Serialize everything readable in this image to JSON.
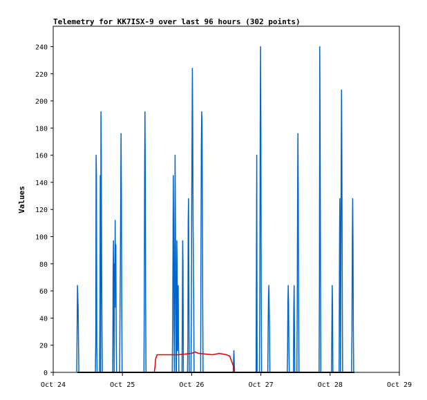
{
  "chart_data": {
    "type": "line",
    "title": "Telemetry for KK7ISX-9 over last 96 hours (302 points)",
    "ylabel": "Values",
    "xlabel": "",
    "ylim": [
      0,
      255
    ],
    "xlim": [
      0,
      5
    ],
    "grid": false,
    "x_tick_labels": [
      "Oct 24",
      "Oct 25",
      "Oct 26",
      "Oct 27",
      "Oct 28",
      "Oct 29"
    ],
    "y_ticks": [
      0,
      20,
      40,
      60,
      80,
      100,
      120,
      140,
      160,
      180,
      200,
      220,
      240
    ],
    "colors": {
      "blue_series": "#0066cc",
      "red_series": "#dd0000",
      "black_series": "#000000"
    },
    "series": [
      {
        "color": "#0066cc",
        "points": [
          [
            0.34,
            0
          ],
          [
            0.35,
            64
          ],
          [
            0.36,
            48
          ],
          [
            0.37,
            0
          ],
          [
            0.61,
            0
          ],
          [
            0.615,
            25
          ],
          [
            0.62,
            160
          ],
          [
            0.625,
            145
          ],
          [
            0.63,
            18
          ],
          [
            0.635,
            0
          ],
          [
            0.67,
            0
          ],
          [
            0.675,
            50
          ],
          [
            0.68,
            145
          ],
          [
            0.685,
            0
          ],
          [
            0.69,
            192
          ],
          [
            0.695,
            160
          ],
          [
            0.7,
            80
          ],
          [
            0.705,
            32
          ],
          [
            0.71,
            0
          ],
          [
            0.86,
            0
          ],
          [
            0.865,
            72
          ],
          [
            0.87,
            97
          ],
          [
            0.875,
            64
          ],
          [
            0.88,
            0
          ],
          [
            0.885,
            80
          ],
          [
            0.89,
            65
          ],
          [
            0.895,
            112
          ],
          [
            0.9,
            48
          ],
          [
            0.905,
            94
          ],
          [
            0.91,
            24
          ],
          [
            0.915,
            0
          ],
          [
            0.96,
            0
          ],
          [
            0.965,
            48
          ],
          [
            0.97,
            80
          ],
          [
            0.975,
            130
          ],
          [
            0.98,
            176
          ],
          [
            0.985,
            132
          ],
          [
            0.99,
            48
          ],
          [
            0.995,
            0
          ],
          [
            1.31,
            0
          ],
          [
            1.315,
            48
          ],
          [
            1.32,
            145
          ],
          [
            1.325,
            192
          ],
          [
            1.33,
            145
          ],
          [
            1.335,
            48
          ],
          [
            1.34,
            0
          ],
          [
            1.72,
            0
          ],
          [
            1.725,
            32
          ],
          [
            1.73,
            80
          ],
          [
            1.735,
            145
          ],
          [
            1.74,
            108
          ],
          [
            1.745,
            32
          ],
          [
            1.75,
            0
          ],
          [
            1.755,
            65
          ],
          [
            1.76,
            160
          ],
          [
            1.765,
            112
          ],
          [
            1.77,
            48
          ],
          [
            1.775,
            0
          ],
          [
            1.78,
            0
          ],
          [
            1.785,
            97
          ],
          [
            1.79,
            80
          ],
          [
            1.795,
            16
          ],
          [
            1.8,
            48
          ],
          [
            1.805,
            64
          ],
          [
            1.81,
            24
          ],
          [
            1.815,
            0
          ],
          [
            1.86,
            0
          ],
          [
            1.865,
            48
          ],
          [
            1.87,
            97
          ],
          [
            1.875,
            80
          ],
          [
            1.88,
            0
          ],
          [
            1.94,
            0
          ],
          [
            1.945,
            24
          ],
          [
            1.95,
            112
          ],
          [
            1.955,
            128
          ],
          [
            1.96,
            64
          ],
          [
            1.965,
            0
          ],
          [
            1.99,
            0
          ],
          [
            1.995,
            32
          ],
          [
            2.0,
            120
          ],
          [
            2.005,
            168
          ],
          [
            2.01,
            224
          ],
          [
            2.015,
            186
          ],
          [
            2.02,
            112
          ],
          [
            2.025,
            80
          ],
          [
            2.03,
            48
          ],
          [
            2.035,
            0
          ],
          [
            2.13,
            0
          ],
          [
            2.135,
            96
          ],
          [
            2.14,
            168
          ],
          [
            2.145,
            192
          ],
          [
            2.15,
            184
          ],
          [
            2.155,
            128
          ],
          [
            2.16,
            48
          ],
          [
            2.165,
            0
          ],
          [
            2.6,
            0
          ],
          [
            2.605,
            8
          ],
          [
            2.61,
            16
          ],
          [
            2.615,
            8
          ],
          [
            2.62,
            0
          ],
          [
            2.93,
            0
          ],
          [
            2.935,
            80
          ],
          [
            2.94,
            160
          ],
          [
            2.945,
            0
          ],
          [
            2.98,
            0
          ],
          [
            2.985,
            64
          ],
          [
            2.99,
            180
          ],
          [
            2.995,
            240
          ],
          [
            3.0,
            180
          ],
          [
            3.005,
            64
          ],
          [
            3.01,
            0
          ],
          [
            3.1,
            0
          ],
          [
            3.105,
            32
          ],
          [
            3.11,
            56
          ],
          [
            3.115,
            64
          ],
          [
            3.12,
            48
          ],
          [
            3.125,
            32
          ],
          [
            3.13,
            0
          ],
          [
            3.38,
            0
          ],
          [
            3.385,
            16
          ],
          [
            3.39,
            52
          ],
          [
            3.395,
            64
          ],
          [
            3.4,
            48
          ],
          [
            3.405,
            16
          ],
          [
            3.41,
            0
          ],
          [
            3.47,
            0
          ],
          [
            3.475,
            48
          ],
          [
            3.48,
            64
          ],
          [
            3.485,
            32
          ],
          [
            3.49,
            0
          ],
          [
            3.52,
            0
          ],
          [
            3.525,
            48
          ],
          [
            3.53,
            132
          ],
          [
            3.535,
            176
          ],
          [
            3.54,
            132
          ],
          [
            3.545,
            48
          ],
          [
            3.55,
            0
          ],
          [
            3.84,
            0
          ],
          [
            3.845,
            64
          ],
          [
            3.85,
            240
          ],
          [
            3.855,
            176
          ],
          [
            3.86,
            88
          ],
          [
            3.865,
            0
          ],
          [
            4.02,
            0
          ],
          [
            4.025,
            32
          ],
          [
            4.03,
            64
          ],
          [
            4.035,
            48
          ],
          [
            4.04,
            0
          ],
          [
            4.13,
            0
          ],
          [
            4.135,
            80
          ],
          [
            4.14,
            128
          ],
          [
            4.145,
            96
          ],
          [
            4.15,
            0
          ],
          [
            4.155,
            80
          ],
          [
            4.16,
            156
          ],
          [
            4.165,
            208
          ],
          [
            4.17,
            156
          ],
          [
            4.175,
            80
          ],
          [
            4.18,
            0
          ],
          [
            4.31,
            0
          ],
          [
            4.315,
            32
          ],
          [
            4.32,
            96
          ],
          [
            4.325,
            128
          ],
          [
            4.33,
            96
          ],
          [
            4.335,
            32
          ],
          [
            4.34,
            0
          ]
        ]
      },
      {
        "color": "#dd0000",
        "points": [
          [
            1.46,
            0
          ],
          [
            1.47,
            4
          ],
          [
            1.48,
            10
          ],
          [
            1.5,
            13
          ],
          [
            1.6,
            13
          ],
          [
            1.8,
            13
          ],
          [
            2.0,
            14
          ],
          [
            2.05,
            15
          ],
          [
            2.1,
            14
          ],
          [
            2.3,
            13
          ],
          [
            2.4,
            14
          ],
          [
            2.5,
            13
          ],
          [
            2.55,
            12
          ],
          [
            2.6,
            5
          ],
          [
            2.62,
            0
          ]
        ]
      },
      {
        "color": "#000000",
        "points": [
          [
            0.35,
            0
          ],
          [
            4.35,
            0
          ]
        ]
      }
    ]
  }
}
